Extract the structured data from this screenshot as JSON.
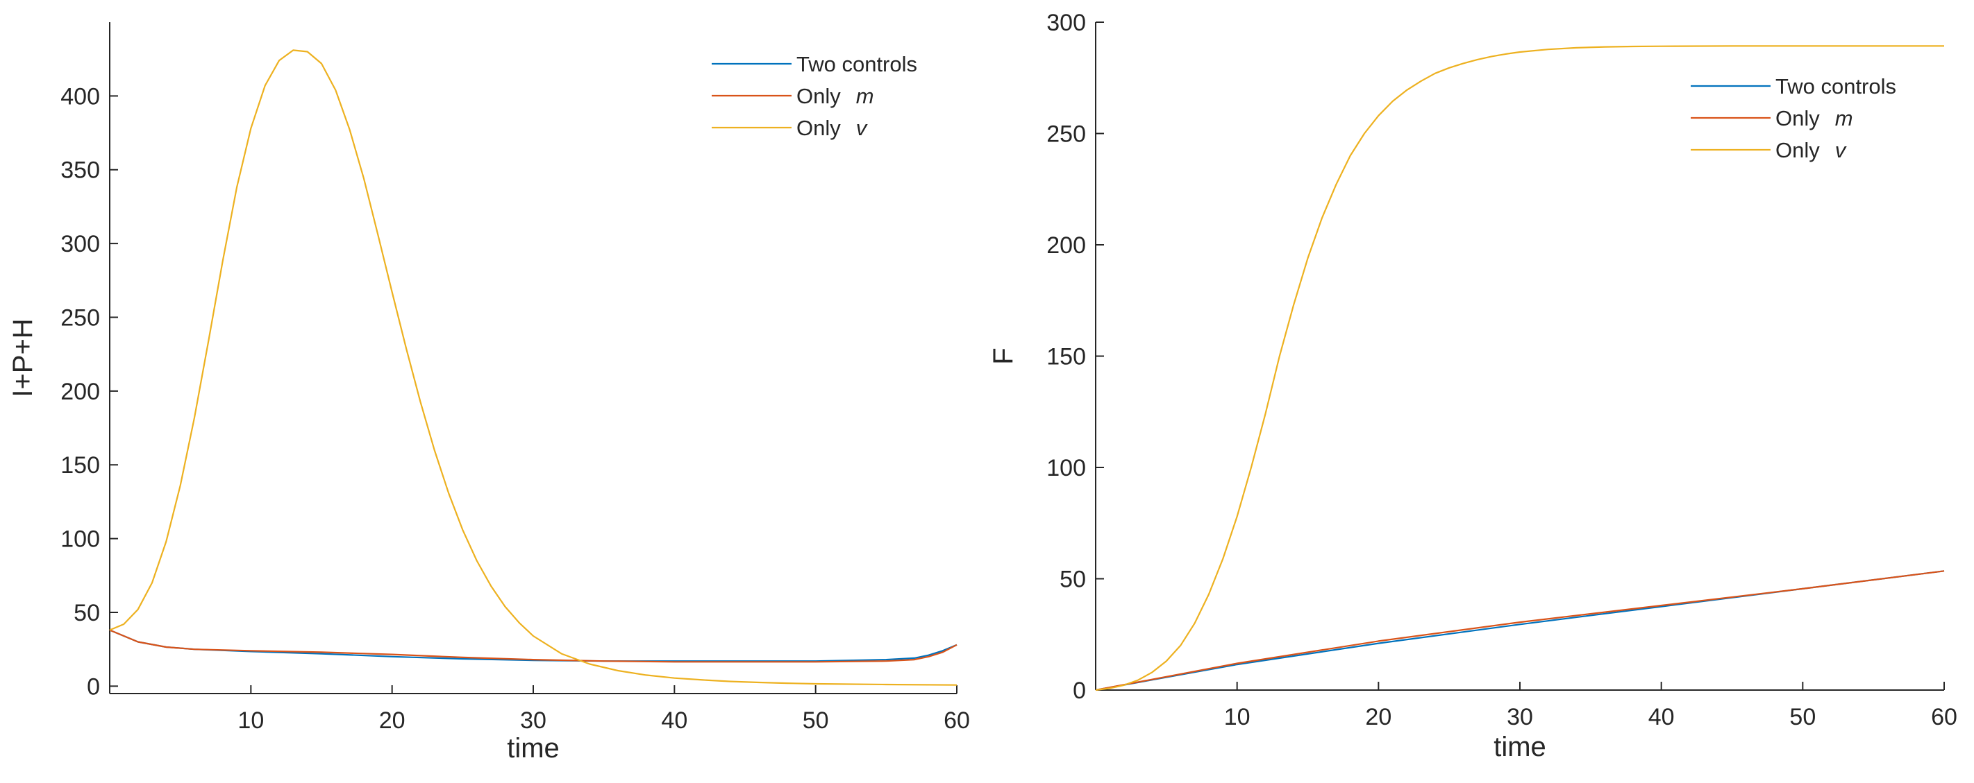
{
  "chart_data": [
    {
      "type": "line",
      "xlabel": "time",
      "ylabel": "I+P+H",
      "xlim": [
        0,
        60
      ],
      "ylim": [
        -5,
        450
      ],
      "xticks": [
        10,
        20,
        30,
        40,
        50,
        60
      ],
      "yticks": [
        0,
        50,
        100,
        150,
        200,
        250,
        300,
        350,
        400
      ],
      "xtick_labels": [
        "10",
        "20",
        "30",
        "40",
        "50",
        "60"
      ],
      "ytick_labels": [
        "0",
        "50",
        "100",
        "150",
        "200",
        "250",
        "300",
        "350",
        "400"
      ],
      "grid": false,
      "legend_position": "top-right",
      "series": [
        {
          "name": "Two controls",
          "legend_prefix": "Two controls",
          "legend_var": "",
          "color": "#0072BD",
          "x": [
            0,
            2,
            4,
            6,
            10,
            15,
            20,
            25,
            30,
            35,
            40,
            45,
            50,
            55,
            57,
            58,
            59,
            60
          ],
          "y": [
            38,
            30,
            26.5,
            25,
            23.5,
            22,
            20,
            18.5,
            17.5,
            17,
            17,
            17,
            17,
            18,
            19,
            21,
            24,
            28
          ]
        },
        {
          "name": "Only m",
          "legend_prefix": "Only",
          "legend_var": "m",
          "color": "#D95319",
          "x": [
            0,
            2,
            4,
            6,
            10,
            15,
            20,
            25,
            30,
            35,
            40,
            45,
            50,
            55,
            57,
            58,
            59,
            60
          ],
          "y": [
            38,
            30,
            26.5,
            25,
            24,
            23,
            21.5,
            19.5,
            18,
            17,
            16.5,
            16.5,
            16.5,
            17,
            18,
            20,
            23,
            28
          ]
        },
        {
          "name": "Only v",
          "legend_prefix": "Only",
          "legend_var": "v",
          "color": "#EDB120",
          "x": [
            0,
            1,
            2,
            3,
            4,
            5,
            6,
            7,
            8,
            9,
            10,
            11,
            12,
            13,
            14,
            15,
            16,
            17,
            18,
            19,
            20,
            21,
            22,
            23,
            24,
            25,
            26,
            27,
            28,
            29,
            30,
            32,
            34,
            36,
            38,
            40,
            42,
            44,
            46,
            48,
            50,
            55,
            60
          ],
          "y": [
            38,
            42,
            52,
            70,
            98,
            136,
            182,
            234,
            288,
            338,
            378,
            407,
            424,
            431,
            430,
            422,
            404,
            377,
            344,
            306,
            267,
            229,
            193,
            160,
            131,
            106,
            85,
            68,
            54,
            43,
            34,
            22,
            15,
            10.5,
            7.5,
            5.5,
            4.2,
            3.2,
            2.5,
            2,
            1.6,
            1.1,
            0.8
          ]
        }
      ]
    },
    {
      "type": "line",
      "xlabel": "time",
      "ylabel": "F",
      "xlim": [
        0,
        60
      ],
      "ylim": [
        0,
        300
      ],
      "xticks": [
        10,
        20,
        30,
        40,
        50,
        60
      ],
      "yticks": [
        0,
        50,
        100,
        150,
        200,
        250,
        300
      ],
      "xtick_labels": [
        "10",
        "20",
        "30",
        "40",
        "50",
        "60"
      ],
      "ytick_labels": [
        "0",
        "50",
        "100",
        "150",
        "200",
        "250",
        "300"
      ],
      "grid": false,
      "legend_position": "top-right",
      "series": [
        {
          "name": "Two controls",
          "legend_prefix": "Two controls",
          "legend_var": "",
          "color": "#0072BD",
          "x": [
            0,
            10,
            20,
            30,
            40,
            50,
            60
          ],
          "y": [
            0,
            11.5,
            21,
            29.5,
            37.5,
            45.5,
            53.5
          ]
        },
        {
          "name": "Only m",
          "legend_prefix": "Only",
          "legend_var": "m",
          "color": "#D95319",
          "x": [
            0,
            10,
            20,
            30,
            40,
            50,
            60
          ],
          "y": [
            0,
            12,
            22,
            30.5,
            38,
            45.5,
            53.5
          ]
        },
        {
          "name": "Only v",
          "legend_prefix": "Only",
          "legend_var": "v",
          "color": "#EDB120",
          "x": [
            0,
            1,
            2,
            3,
            4,
            5,
            6,
            7,
            8,
            9,
            10,
            11,
            12,
            13,
            14,
            15,
            16,
            17,
            18,
            19,
            20,
            21,
            22,
            23,
            24,
            25,
            26,
            27,
            28,
            29,
            30,
            32,
            34,
            36,
            38,
            40,
            45,
            50,
            55,
            60
          ],
          "y": [
            0,
            0.8,
            2.2,
            4.5,
            8,
            13,
            20,
            30,
            43,
            59,
            78,
            100,
            124,
            150,
            173,
            194,
            212,
            227,
            240,
            250,
            258,
            264.5,
            269.5,
            273.5,
            277,
            279.5,
            281.5,
            283.2,
            284.6,
            285.7,
            286.6,
            287.8,
            288.5,
            288.9,
            289.1,
            289.2,
            289.3,
            289.3,
            289.3,
            289.3
          ]
        }
      ]
    }
  ]
}
